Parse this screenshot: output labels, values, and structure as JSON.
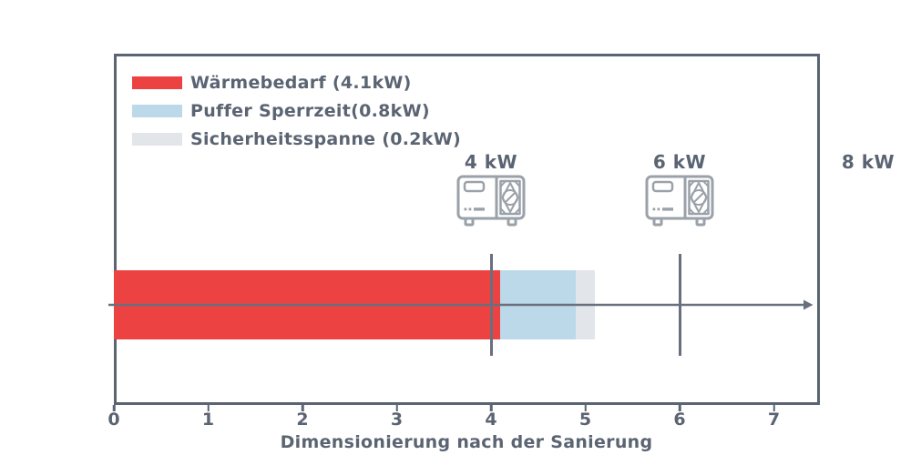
{
  "colors": {
    "frame": "#5b6472",
    "text": "#5b6472",
    "marker_line": "#68707e",
    "icon_stroke": "#9aa1a9",
    "background": "#ffffff"
  },
  "icons": {
    "heat_pump": "heat-pump-outdoor-unit-outline"
  },
  "chart_data": {
    "type": "bar",
    "orientation": "horizontal",
    "stacked": true,
    "title": "",
    "xlabel": "Dimensionierung nach der Sanierung",
    "ylabel": "",
    "xlim": [
      0,
      7.49
    ],
    "xticks": [
      "0",
      "1",
      "2",
      "3",
      "4",
      "5",
      "6",
      "7"
    ],
    "grid": false,
    "legend_position": "upper left",
    "series": [
      {
        "name": "Wärmebedarf",
        "value": 4.1,
        "label": "Wärmebedarf (4.1kW)",
        "color": "#ec4242"
      },
      {
        "name": "Puffer Sperrzeit",
        "value": 0.8,
        "label": "Puffer Sperrzeit(0.8kW)",
        "color": "#bcd9e9"
      },
      {
        "name": "Sicherheitsspanne",
        "value": 0.2,
        "label": "Sicherheitsspanne (0.2kW)",
        "color": "#e2e5ea"
      }
    ],
    "markers": [
      {
        "label": "4 kW",
        "value": 4,
        "has_line": true,
        "has_icon": true
      },
      {
        "label": "6 kW",
        "value": 6,
        "has_line": true,
        "has_icon": true
      },
      {
        "label": "8 kW",
        "value": 8,
        "has_line": false,
        "has_icon": false
      }
    ]
  }
}
